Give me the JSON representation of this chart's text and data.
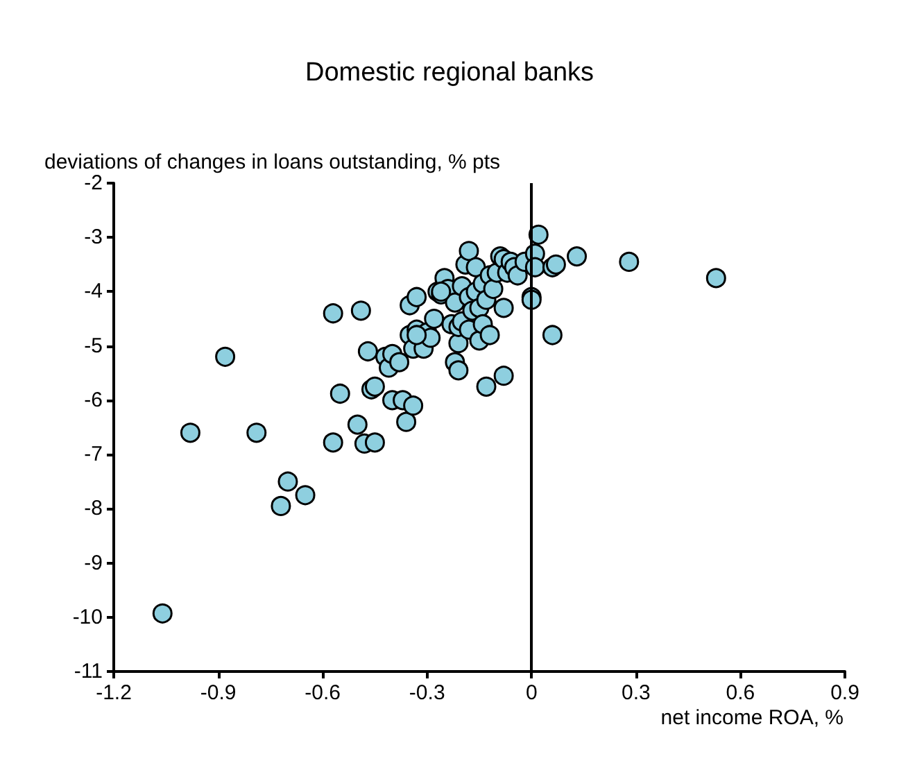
{
  "chart_data": {
    "type": "scatter",
    "title": "Domestic regional banks",
    "xlabel": "net income ROA, %",
    "ylabel": "deviations of changes in loans outstanding, % pts",
    "xlim": [
      -1.2,
      0.9
    ],
    "xticks": [
      -1.2,
      -0.9,
      -0.6,
      -0.3,
      0,
      0.3,
      0.6,
      0.9
    ],
    "ylim": [
      -11,
      -2
    ],
    "yticks": [
      -11,
      -10,
      -9,
      -8,
      -7,
      -6,
      -5,
      -4,
      -3,
      -2
    ],
    "grid": false,
    "marker": "circle",
    "ref_lines": [
      {
        "axis": "x",
        "value": 0,
        "color": "#000000"
      }
    ],
    "series": [
      {
        "color": "#8ecfdf",
        "x": [
          -1.06,
          -0.98,
          -0.88,
          -0.79,
          -0.72,
          -0.7,
          -0.65,
          -0.57,
          -0.57,
          -0.55,
          -0.5,
          -0.49,
          -0.48,
          -0.47,
          -0.46,
          -0.45,
          -0.45,
          -0.42,
          -0.41,
          -0.4,
          -0.4,
          -0.38,
          -0.37,
          -0.36,
          -0.35,
          -0.34,
          -0.34,
          -0.35,
          -0.33,
          -0.33,
          -0.31,
          -0.3,
          -0.29,
          -0.28,
          -0.27,
          -0.26,
          -0.25,
          -0.24,
          -0.23,
          -0.22,
          -0.22,
          -0.21,
          -0.21,
          -0.21,
          -0.2,
          -0.2,
          -0.19,
          -0.18,
          -0.18,
          -0.18,
          -0.17,
          -0.16,
          -0.16,
          -0.15,
          -0.15,
          -0.14,
          -0.14,
          -0.13,
          -0.13,
          -0.12,
          -0.12,
          -0.11,
          -0.1,
          -0.09,
          -0.08,
          -0.08,
          -0.08,
          -0.07,
          -0.06,
          -0.05,
          -0.04,
          -0.02,
          0.02,
          0.01,
          0.01,
          0,
          0,
          0.06,
          0.06,
          0.07,
          0.13,
          0.28,
          0.53,
          -0.26,
          -0.33
        ],
        "values": [
          -9.93,
          -6.6,
          -5.2,
          -6.6,
          -7.95,
          -7.5,
          -7.75,
          -6.78,
          -4.4,
          -5.88,
          -6.45,
          -4.35,
          -6.8,
          -5.1,
          -5.8,
          -5.75,
          -6.78,
          -5.2,
          -5.4,
          -6,
          -5.15,
          -5.3,
          -6,
          -6.4,
          -4.8,
          -6.1,
          -5.05,
          -4.25,
          -4.7,
          -4.1,
          -5.05,
          -4.75,
          -4.85,
          -4.5,
          -4,
          -4.05,
          -3.75,
          -3.95,
          -4.6,
          -4.2,
          -5.3,
          -4.95,
          -5.45,
          -4.65,
          -3.9,
          -4.55,
          -3.5,
          -3.25,
          -4.1,
          -4.7,
          -4.35,
          -3.55,
          -4,
          -4.3,
          -4.9,
          -3.85,
          -4.6,
          -5.75,
          -4.15,
          -3.7,
          -4.8,
          -3.95,
          -3.65,
          -3.35,
          -3.4,
          -4.3,
          -5.55,
          -3.65,
          -3.45,
          -3.55,
          -3.7,
          -3.45,
          -2.95,
          -3.3,
          -3.55,
          -4.1,
          -4.15,
          -4.8,
          -3.55,
          -3.5,
          -3.35,
          -3.45,
          -3.75,
          -4,
          -4.8
        ]
      }
    ]
  }
}
